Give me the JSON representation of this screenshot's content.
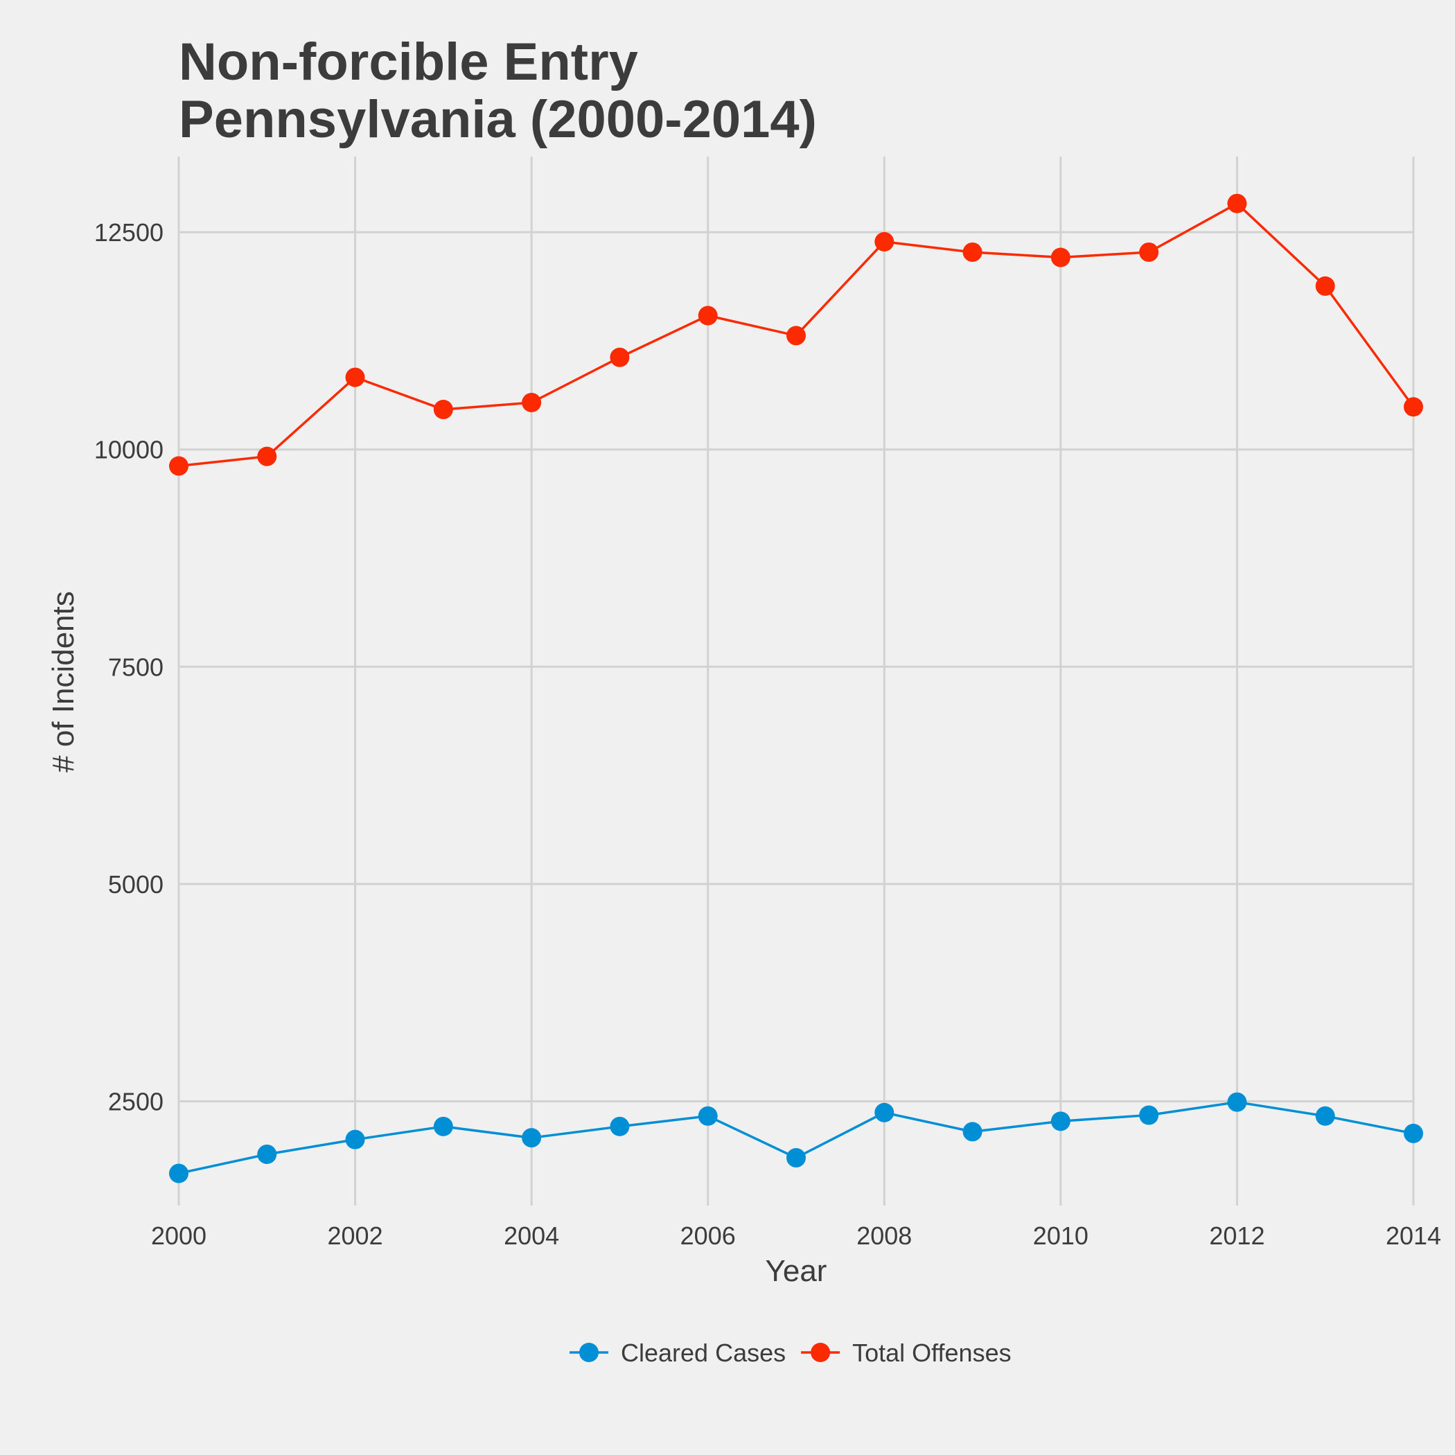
{
  "chart_data": {
    "type": "line",
    "title_lines": [
      "Non-forcible Entry",
      "Pennsylvania (2000-2014)"
    ],
    "xlabel": "Year",
    "ylabel": "# of Incidents",
    "x": [
      2000,
      2001,
      2002,
      2003,
      2004,
      2005,
      2006,
      2007,
      2008,
      2009,
      2010,
      2011,
      2012,
      2013,
      2014
    ],
    "xlim": [
      2000,
      2014
    ],
    "ylim": [
      1300,
      13370
    ],
    "x_ticks": [
      2000,
      2002,
      2004,
      2006,
      2008,
      2010,
      2012,
      2014
    ],
    "y_ticks": [
      2500,
      5000,
      7500,
      10000,
      12500
    ],
    "x_tick_labels": [
      "2000",
      "2002",
      "2004",
      "2006",
      "2008",
      "2010",
      "2012",
      "2014"
    ],
    "y_tick_labels": [
      "2500",
      "5000",
      "7500",
      "10000",
      "12500"
    ],
    "grid": true,
    "legend_position": "bottom",
    "series": [
      {
        "name": "Cleared Cases",
        "color": "#008fd5",
        "values": [
          1670,
          1890,
          2060,
          2210,
          2080,
          2210,
          2330,
          1850,
          2370,
          2150,
          2270,
          2340,
          2490,
          2330,
          2130
        ]
      },
      {
        "name": "Total Offenses",
        "color": "#fc2a00",
        "values": [
          9810,
          9920,
          10830,
          10460,
          10540,
          11060,
          11540,
          11310,
          12390,
          12270,
          12210,
          12270,
          12830,
          11880,
          10490
        ]
      }
    ]
  }
}
